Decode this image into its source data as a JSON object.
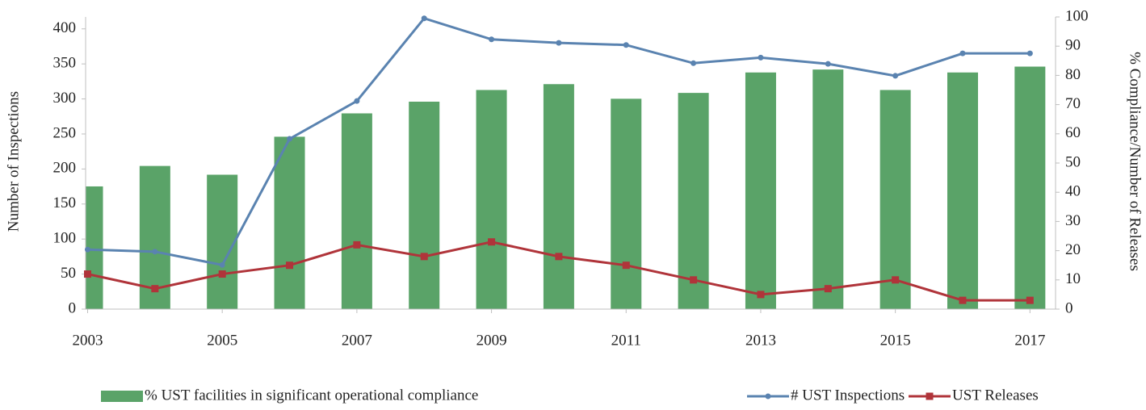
{
  "chart_data": {
    "type": "bar",
    "y_label": "Number of Inspections",
    "y2_label": "% Compliance/Number of Releases",
    "x": [
      2003,
      2004,
      2005,
      2006,
      2007,
      2008,
      2009,
      2010,
      2011,
      2012,
      2013,
      2014,
      2015,
      2016,
      2017
    ],
    "xlim": [
      2002.97,
      2017.38
    ],
    "xticks": [
      2003,
      2005,
      2007,
      2009,
      2011,
      2013,
      2015,
      2017
    ],
    "ylim": [
      0,
      417
    ],
    "yticks": [
      0,
      50,
      100,
      150,
      200,
      250,
      300,
      350,
      400
    ],
    "y2lim": [
      0,
      100
    ],
    "y2ticks": [
      0,
      10,
      20,
      30,
      40,
      50,
      60,
      70,
      80,
      90,
      100
    ],
    "legend": "bottom",
    "series": [
      {
        "name": "% UST facilities in significant operational compliance",
        "type": "bar",
        "axis": "y2",
        "color": "#5aa368",
        "values": [
          42,
          49,
          46,
          59,
          67,
          71,
          75,
          77,
          72,
          74,
          81,
          82,
          75,
          81,
          83
        ]
      },
      {
        "name": "# UST Inspections",
        "type": "line",
        "marker": "circle",
        "color": "#5a83b0",
        "values": [
          85,
          82,
          63,
          243,
          297,
          415,
          385,
          380,
          377,
          351,
          359,
          350,
          333,
          365,
          365
        ]
      },
      {
        "name": "UST Releases",
        "type": "line",
        "marker": "square",
        "axis": "y2",
        "color": "#b0343a",
        "values": [
          12,
          7,
          12,
          15,
          22,
          18,
          23,
          18,
          15,
          10,
          5,
          7,
          10,
          3,
          3
        ]
      }
    ]
  }
}
